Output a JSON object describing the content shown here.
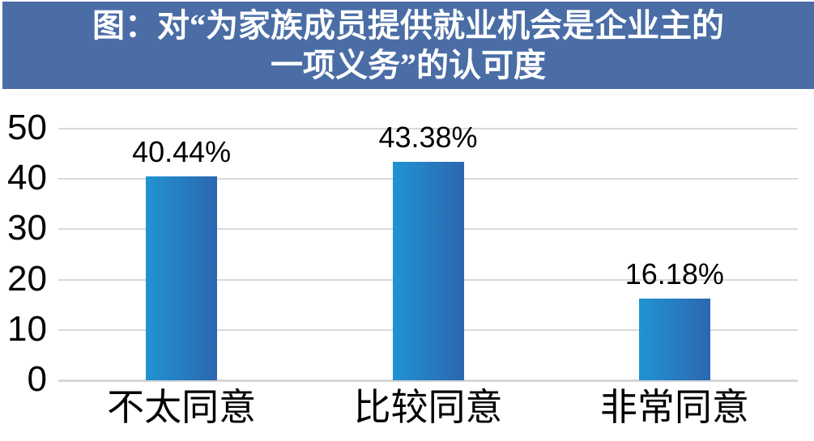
{
  "title": {
    "lines": [
      "图：对“为家族成员提供就业机会是企业主的",
      "一项义务”的认可度"
    ],
    "full": "图：对“为家族成员提供就业机会是企业主的一项义务”的认可度"
  },
  "colors": {
    "banner": "#4A6DA6",
    "title_text": "#FFFFFF",
    "bar_gradient_start": "#2193D2",
    "bar_gradient_end": "#2B67B0",
    "gridline": "#D9D9D9",
    "axis_line": "#D6D6D6",
    "label_text": "#000000"
  },
  "chart_data": {
    "type": "bar",
    "title": "图：对“为家族成员提供就业机会是企业主的一项义务”的认可度",
    "categories": [
      "不太同意",
      "比较同意",
      "非常同意"
    ],
    "values": [
      40.44,
      43.38,
      16.18
    ],
    "value_labels": [
      "40.44%",
      "43.38%",
      "16.18%"
    ],
    "xlabel": "",
    "ylabel": "",
    "yticks": [
      0,
      10,
      20,
      30,
      40,
      50
    ],
    "ylim": [
      0,
      50
    ],
    "grid": true,
    "legend_position": "none",
    "bar_fill": "horizontal-gradient-blue"
  }
}
